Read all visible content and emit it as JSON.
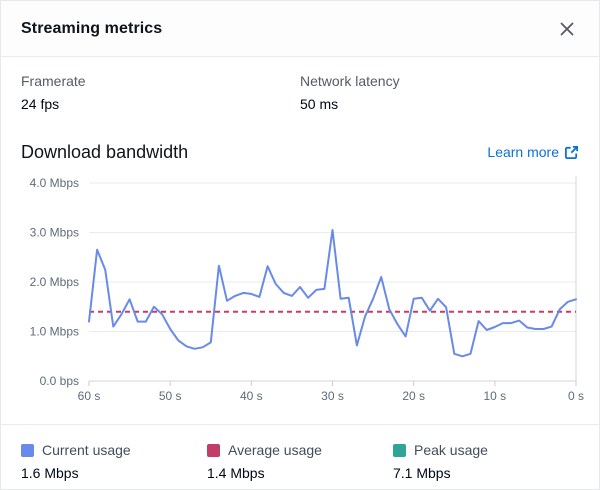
{
  "header": {
    "title": "Streaming metrics"
  },
  "metrics": [
    {
      "label": "Framerate",
      "value": "24 fps"
    },
    {
      "label": "Network latency",
      "value": "50 ms"
    }
  ],
  "section": {
    "title": "Download bandwidth",
    "learn_more_label": "Learn more"
  },
  "chart_data": {
    "type": "line",
    "title": "Download bandwidth",
    "xlabel": "",
    "ylabel": "",
    "ylim": [
      0,
      4
    ],
    "x_start_seconds_ago": 60,
    "x_end_seconds_ago": 0,
    "x_step_seconds": 1,
    "grid": "horizontal",
    "legend_position": "bottom",
    "y_ticks": [
      {
        "v": 4,
        "label": "4.0 Mbps"
      },
      {
        "v": 3,
        "label": "3.0 Mbps"
      },
      {
        "v": 2,
        "label": "2.0 Mbps"
      },
      {
        "v": 1,
        "label": "1.0 Mbps"
      },
      {
        "v": 0,
        "label": "0.0 bps"
      }
    ],
    "x_ticks": [
      {
        "t": 60,
        "label": "60 s"
      },
      {
        "t": 50,
        "label": "50 s"
      },
      {
        "t": 40,
        "label": "40 s"
      },
      {
        "t": 30,
        "label": "30 s"
      },
      {
        "t": 20,
        "label": "20 s"
      },
      {
        "t": 10,
        "label": "10 s"
      },
      {
        "t": 0,
        "label": "0 s"
      }
    ],
    "series": [
      {
        "name": "Current usage",
        "color": "#688AE8",
        "style": "solid",
        "unit": "Mbps",
        "note": "values ordered oldest (60 s ago) to newest (0 s)",
        "values": [
          1.2,
          2.65,
          2.25,
          1.1,
          1.35,
          1.65,
          1.2,
          1.2,
          1.5,
          1.35,
          1.05,
          0.82,
          0.7,
          0.65,
          0.68,
          0.78,
          2.33,
          1.62,
          1.72,
          1.78,
          1.76,
          1.7,
          2.32,
          1.96,
          1.78,
          1.72,
          1.9,
          1.68,
          1.84,
          1.86,
          3.05,
          1.66,
          1.68,
          0.72,
          1.3,
          1.66,
          2.1,
          1.45,
          1.15,
          0.9,
          1.66,
          1.68,
          1.42,
          1.66,
          1.49,
          0.55,
          0.5,
          0.55,
          1.21,
          1.03,
          1.09,
          1.17,
          1.17,
          1.22,
          1.08,
          1.05,
          1.05,
          1.1,
          1.45,
          1.6,
          1.65
        ]
      },
      {
        "name": "Average usage",
        "color": "#C33D69",
        "style": "dashed",
        "unit": "Mbps",
        "value": 1.4
      },
      {
        "name": "Peak usage",
        "color": "#2EA597",
        "unit": "Mbps",
        "value": 7.1,
        "note": "above visible y-range, not plotted"
      }
    ]
  },
  "legend": [
    {
      "label": "Current usage",
      "value": "1.6 Mbps",
      "color": "#688AE8"
    },
    {
      "label": "Average usage",
      "value": "1.4 Mbps",
      "color": "#C33D69"
    },
    {
      "label": "Peak usage",
      "value": "7.1 Mbps",
      "color": "#2EA597"
    }
  ],
  "colors": {
    "link": "#0972d3",
    "text_primary": "#000716",
    "text_secondary": "#545b64",
    "axis_text": "#5f6b7a",
    "gridline": "#e9ebed",
    "baseline": "#d1d5db"
  }
}
